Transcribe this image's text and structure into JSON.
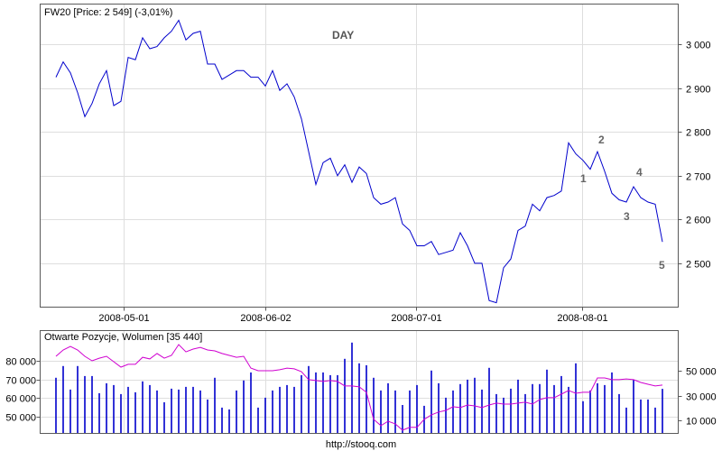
{
  "chart_data": [
    {
      "type": "line",
      "title": "FW20 [Price: 2 549] (-3,01%)",
      "annotation": "DAY",
      "wave_labels": [
        "1",
        "2",
        "3",
        "4",
        "5"
      ],
      "x_tick_labels": [
        "2008-05-01",
        "2008-06-02",
        "2008-07-01",
        "2008-08-01"
      ],
      "y_axis_side": "right",
      "y_ticks": [
        3000,
        2900,
        2800,
        2700,
        2600,
        2500
      ],
      "y_tick_labels": [
        "3 000",
        "2 900",
        "2 800",
        "2 700",
        "2 600",
        "2 500"
      ],
      "ylim": [
        2400,
        3092
      ],
      "grid": true,
      "series": [
        {
          "color": "#0000cc",
          "values": [
            2925,
            2960,
            2935,
            2890,
            2835,
            2865,
            2910,
            2940,
            2860,
            2870,
            2970,
            2965,
            3015,
            2990,
            2995,
            3015,
            3030,
            3055,
            3010,
            3025,
            3030,
            2955,
            2955,
            2920,
            2930,
            2940,
            2940,
            2925,
            2925,
            2905,
            2940,
            2895,
            2910,
            2880,
            2830,
            2755,
            2680,
            2730,
            2740,
            2700,
            2725,
            2685,
            2720,
            2705,
            2650,
            2635,
            2640,
            2650,
            2590,
            2575,
            2540,
            2540,
            2550,
            2520,
            2525,
            2530,
            2570,
            2540,
            2500,
            2500,
            2415,
            2410,
            2490,
            2510,
            2575,
            2585,
            2635,
            2620,
            2650,
            2655,
            2665,
            2775,
            2750,
            2735,
            2715,
            2755,
            2710,
            2660,
            2645,
            2640,
            2675,
            2650,
            2640,
            2635,
            2549
          ]
        }
      ]
    },
    {
      "type": "bar",
      "title": "Otwarte Pozycje, Wolumen [35 440]",
      "grid": true,
      "left_axis": {
        "ticks": [
          80000,
          70000,
          60000,
          50000
        ],
        "tick_labels": [
          "80 000",
          "70 000",
          "60 000",
          "50 000"
        ],
        "ylim": [
          41300,
          96450
        ]
      },
      "right_axis": {
        "ticks": [
          50000,
          30000,
          10000
        ],
        "tick_labels": [
          "50 000",
          "30 000",
          "10 000"
        ],
        "ylim": [
          0,
          82700
        ]
      },
      "series": [
        {
          "type": "line",
          "axis": "left",
          "color": "#d000d0",
          "values": [
            82400,
            85800,
            87700,
            85800,
            82400,
            80000,
            81400,
            82400,
            79500,
            76600,
            78100,
            78100,
            81900,
            81000,
            83900,
            81400,
            82900,
            88700,
            84800,
            86300,
            87200,
            85800,
            85300,
            83900,
            82900,
            81900,
            82400,
            76100,
            74700,
            74700,
            74700,
            75200,
            76100,
            75700,
            74200,
            69900,
            69400,
            68900,
            69400,
            68900,
            66500,
            66500,
            66000,
            63100,
            48600,
            45200,
            47600,
            46200,
            42800,
            44300,
            44300,
            48600,
            51000,
            52500,
            53400,
            55400,
            54900,
            56300,
            55800,
            54900,
            56300,
            57300,
            56800,
            56800,
            57300,
            57800,
            56800,
            59200,
            60200,
            60200,
            62100,
            64100,
            62600,
            63100,
            63100,
            70800,
            70800,
            69900,
            69900,
            70300,
            69900,
            68400,
            67400,
            66500,
            67000
          ]
        },
        {
          "type": "bar",
          "axis": "right",
          "color": "#0000cc",
          "values": [
            44400,
            53800,
            34900,
            53800,
            45800,
            45800,
            32000,
            40000,
            38500,
            31300,
            37100,
            32700,
            41500,
            38500,
            34200,
            24700,
            35600,
            34900,
            37100,
            37100,
            34200,
            26900,
            44400,
            20400,
            18900,
            34200,
            42200,
            48700,
            20400,
            28400,
            34200,
            37100,
            38500,
            37100,
            46500,
            53800,
            48700,
            48700,
            46500,
            46500,
            59600,
            72700,
            56000,
            54500,
            44400,
            34200,
            40000,
            34200,
            22500,
            34200,
            38500,
            21800,
            50200,
            40000,
            28400,
            34200,
            39300,
            42900,
            44400,
            34900,
            52400,
            31300,
            28400,
            35600,
            42900,
            31300,
            39300,
            39300,
            50900,
            38500,
            45800,
            37100,
            56000,
            25500,
            34200,
            40000,
            38500,
            48700,
            31300,
            20400,
            42900,
            26900,
            26900,
            20400,
            35440
          ]
        }
      ]
    }
  ],
  "footer": "http://stooq.com"
}
